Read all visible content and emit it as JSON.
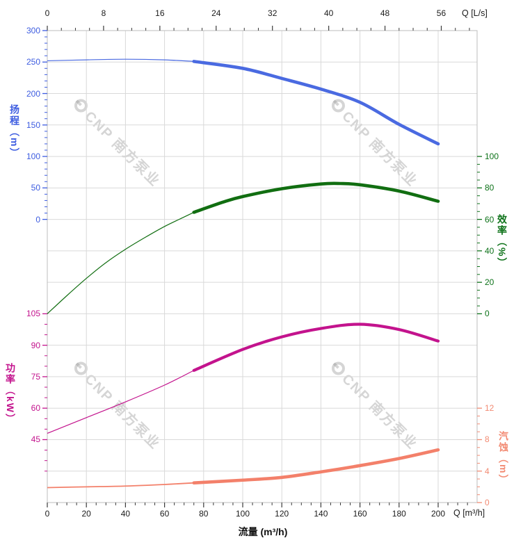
{
  "watermark": {
    "text": "CNP 南方泵业"
  },
  "chart_data": {
    "type": "line",
    "title": "",
    "grid": true,
    "x_axis_bottom": {
      "title": "流量 (m³/h)",
      "unit_label": "Q [m³/h]",
      "ticks": [
        0,
        20,
        40,
        60,
        80,
        100,
        120,
        140,
        160,
        180,
        200
      ],
      "minor_step": 5,
      "range": [
        0,
        220
      ]
    },
    "x_axis_top": {
      "unit_label": "Q [L/s]",
      "ticks": [
        0,
        8,
        16,
        24,
        32,
        40,
        48,
        56
      ],
      "minor_step": 2,
      "range": [
        0,
        61
      ],
      "lps_to_m3h": 3.6
    },
    "y_axes": [
      {
        "id": "head",
        "side": "left",
        "vtitle": "扬程（m）",
        "color": "#3d5ce0",
        "ticks": [
          300,
          250,
          200,
          150,
          100,
          50,
          0
        ],
        "minor_step": 10
      },
      {
        "id": "efficiency",
        "side": "right",
        "vtitle": "效率（%）",
        "color": "#0d7219",
        "ticks": [
          100,
          80,
          60,
          40,
          20,
          0
        ],
        "minor_step": 5
      },
      {
        "id": "power",
        "side": "left",
        "vtitle": "功率（kW）",
        "color": "#c3138d",
        "ticks": [
          105,
          90,
          75,
          60,
          45
        ],
        "minor_step": 5,
        "minor_extend_to": 30
      },
      {
        "id": "npsh",
        "side": "right",
        "vtitle": "汽蚀（m）",
        "color": "#f28a72",
        "ticks": [
          12,
          8,
          4,
          0
        ],
        "minor_step": 1
      }
    ],
    "series": [
      {
        "name": "扬程",
        "axis": "head",
        "color": "#4a6ae1",
        "thick_from": 75,
        "points": [
          [
            0,
            252
          ],
          [
            20,
            253.5
          ],
          [
            40,
            254.5
          ],
          [
            60,
            253.5
          ],
          [
            75,
            251
          ],
          [
            100,
            240
          ],
          [
            120,
            224
          ],
          [
            140,
            207
          ],
          [
            160,
            186
          ],
          [
            180,
            151
          ],
          [
            200,
            120
          ]
        ]
      },
      {
        "name": "效率",
        "axis": "efficiency",
        "color": "#116e11",
        "thick_from": 75,
        "points": [
          [
            0,
            0
          ],
          [
            10,
            11.5
          ],
          [
            20,
            22.5
          ],
          [
            30,
            32.5
          ],
          [
            40,
            41
          ],
          [
            50,
            48.5
          ],
          [
            60,
            55.5
          ],
          [
            70,
            61.5
          ],
          [
            75,
            64.5
          ],
          [
            90,
            71
          ],
          [
            100,
            74.5
          ],
          [
            120,
            79.5
          ],
          [
            140,
            82.5
          ],
          [
            150,
            82.8
          ],
          [
            160,
            82
          ],
          [
            180,
            78
          ],
          [
            200,
            71.5
          ]
        ]
      },
      {
        "name": "功率",
        "axis": "power",
        "color": "#c3138d",
        "thick_from": 75,
        "points": [
          [
            0,
            48
          ],
          [
            20,
            55.5
          ],
          [
            40,
            63
          ],
          [
            60,
            71
          ],
          [
            75,
            78
          ],
          [
            100,
            88
          ],
          [
            120,
            94
          ],
          [
            140,
            98
          ],
          [
            160,
            100
          ],
          [
            180,
            97.5
          ],
          [
            200,
            92
          ]
        ]
      },
      {
        "name": "汽蚀",
        "axis": "npsh",
        "color": "#f3806a",
        "thick_from": 75,
        "points": [
          [
            0,
            1.9
          ],
          [
            20,
            2.0
          ],
          [
            40,
            2.1
          ],
          [
            60,
            2.3
          ],
          [
            75,
            2.5
          ],
          [
            100,
            2.85
          ],
          [
            120,
            3.2
          ],
          [
            140,
            3.9
          ],
          [
            160,
            4.7
          ],
          [
            180,
            5.6
          ],
          [
            200,
            6.7
          ]
        ]
      }
    ]
  }
}
